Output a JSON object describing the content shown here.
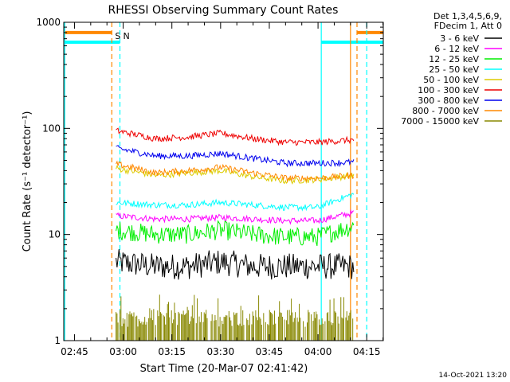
{
  "chart_data": {
    "type": "line",
    "title": "RHESSI Observing Summary Count Rates",
    "xlabel": "Start Time (20-Mar-07 02:41:42)",
    "ylabel": "Count Rate (s⁻¹ detector⁻¹)",
    "ylog": true,
    "ylim": [
      1,
      1000
    ],
    "xlim_minutes": [
      161.7,
      260.1
    ],
    "y_ticks": [
      {
        "value": 1,
        "label": "1"
      },
      {
        "value": 10,
        "label": "10"
      },
      {
        "value": 100,
        "label": "100"
      },
      {
        "value": 1000,
        "label": "1000"
      }
    ],
    "x_ticks": [
      {
        "value": 165,
        "label": "02:45"
      },
      {
        "value": 180,
        "label": "03:00"
      },
      {
        "value": 195,
        "label": "03:15"
      },
      {
        "value": 210,
        "label": "03:30"
      },
      {
        "value": 225,
        "label": "03:45"
      },
      {
        "value": 240,
        "label": "04:00"
      },
      {
        "value": 255,
        "label": "04:15"
      }
    ],
    "legend": {
      "header": [
        "Det 1,3,4,5,6,9,",
        "FDecim 1, Att 0"
      ],
      "placement": "right"
    },
    "data_window_minutes": [
      177.8,
      251.0
    ],
    "series": [
      {
        "name": "3 - 6 keV",
        "color": "#000000",
        "x": [
          177.8,
          190,
          200,
          210,
          220,
          230,
          240,
          251
        ],
        "values": [
          5.5,
          5.0,
          5.0,
          5.5,
          5.0,
          5.0,
          5.0,
          5.0
        ]
      },
      {
        "name": "6 - 12 keV",
        "color": "#ff00ff",
        "x": [
          177.8,
          190,
          200,
          210,
          220,
          230,
          240,
          251
        ],
        "values": [
          15,
          14,
          14,
          14.5,
          14,
          13.5,
          13.5,
          16
        ]
      },
      {
        "name": "12 - 25 keV",
        "color": "#00ee00",
        "x": [
          177.8,
          190,
          200,
          210,
          220,
          230,
          240,
          251
        ],
        "values": [
          11,
          10,
          10,
          11,
          10,
          9.5,
          9.5,
          12
        ]
      },
      {
        "name": "25 - 50 keV",
        "color": "#00ffff",
        "x": [
          177.8,
          190,
          200,
          210,
          220,
          230,
          240,
          251
        ],
        "values": [
          20,
          19,
          19,
          20,
          19,
          18,
          18,
          24
        ]
      },
      {
        "name": "50 - 100 keV",
        "color": "#ddcc00",
        "x": [
          177.8,
          190,
          200,
          210,
          220,
          230,
          240,
          251
        ],
        "values": [
          42,
          36,
          38,
          40,
          35,
          32,
          33,
          36
        ]
      },
      {
        "name": "100 - 300 keV",
        "color": "#ee0000",
        "x": [
          177.8,
          190,
          200,
          210,
          220,
          230,
          240,
          251
        ],
        "values": [
          95,
          80,
          83,
          90,
          80,
          74,
          74,
          78
        ]
      },
      {
        "name": "300 - 800 keV",
        "color": "#0000ee",
        "x": [
          177.8,
          190,
          200,
          210,
          220,
          230,
          240,
          251
        ],
        "values": [
          65,
          55,
          55,
          58,
          52,
          47,
          47,
          48
        ]
      },
      {
        "name": "800 - 7000 keV",
        "color": "#ff8800",
        "x": [
          177.8,
          190,
          200,
          210,
          220,
          230,
          240,
          251
        ],
        "values": [
          46,
          38,
          40,
          43,
          38,
          34,
          34,
          36
        ]
      },
      {
        "name": "7000 - 15000 keV",
        "color": "#888800",
        "x": [
          177.8,
          190,
          200,
          210,
          220,
          230,
          240,
          251
        ],
        "values": [
          1.5,
          1.5,
          1.5,
          1.5,
          1.5,
          1.5,
          1.5,
          1.5
        ]
      }
    ],
    "markers": [
      {
        "label": "S",
        "color": "#ff8800",
        "style": "dashed",
        "x": 176.5
      },
      {
        "label": "N",
        "color": "#00ffff",
        "style": "dashed",
        "x": 179.0
      },
      {
        "label": "",
        "color": "#ff8800",
        "style": "dashed",
        "x": 252.0
      },
      {
        "label": "",
        "color": "#00ffff",
        "style": "dashed",
        "x": 255.0
      },
      {
        "label": "",
        "color": "#00ffff",
        "style": "solid",
        "x": 162.0
      },
      {
        "label": "",
        "color": "#00ffff",
        "style": "solid",
        "x": 241.0
      },
      {
        "label": "",
        "color": "#ff8800",
        "style": "solid",
        "x": 250.0
      }
    ],
    "flag_bars": [
      {
        "color": "#ff8800",
        "value": 800,
        "ranges": [
          [
            162,
            176.5
          ],
          [
            252,
            260
          ]
        ]
      },
      {
        "color": "#00ffff",
        "value": 650,
        "ranges": [
          [
            162,
            179
          ],
          [
            241,
            260
          ]
        ]
      }
    ]
  },
  "footer": {
    "timestamp": "14-Oct-2021 13:20"
  }
}
